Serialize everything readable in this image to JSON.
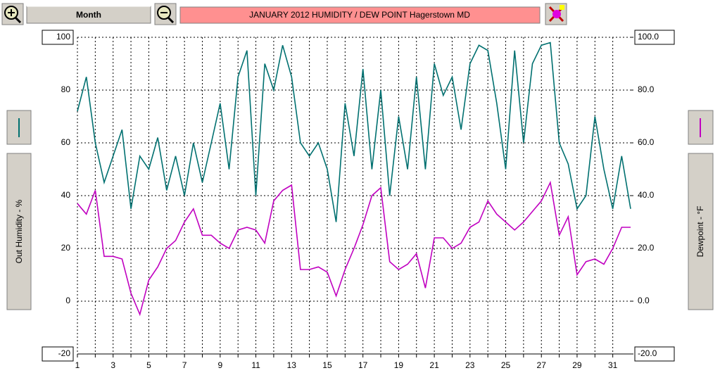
{
  "toolbar": {
    "period": "Month"
  },
  "chart_data": {
    "type": "line",
    "title": "JANUARY 2012  HUMIDITY / DEW POINT  Hagerstown MD",
    "y_label": "Out Humidity - %",
    "y2_label": "Dewpoint - °F",
    "x": [
      1,
      1.5,
      2,
      2.5,
      3,
      3.5,
      4,
      4.5,
      5,
      5.5,
      6,
      6.5,
      7,
      7.5,
      8,
      8.5,
      9,
      9.5,
      10,
      10.5,
      11,
      11.5,
      12,
      12.5,
      13,
      13.5,
      14,
      14.5,
      15,
      15.5,
      16,
      16.5,
      17,
      17.5,
      18,
      18.5,
      19,
      19.5,
      20,
      20.5,
      21,
      21.5,
      22,
      22.5,
      23,
      23.5,
      24,
      24.5,
      25,
      25.5,
      26,
      26.5,
      27,
      27.5,
      28,
      28.5,
      29,
      29.5,
      30,
      30.5,
      31,
      31.5,
      32
    ],
    "series": [
      {
        "name": "Out Humidity",
        "color": "#007070",
        "axis": "y",
        "values": [
          72,
          85,
          60,
          45,
          55,
          65,
          35,
          55,
          50,
          62,
          42,
          55,
          40,
          60,
          45,
          60,
          75,
          50,
          85,
          95,
          40,
          90,
          80,
          97,
          85,
          60,
          55,
          60,
          50,
          30,
          75,
          55,
          88,
          50,
          80,
          40,
          70,
          50,
          85,
          50,
          90,
          78,
          85,
          65,
          90,
          97,
          95,
          75,
          50,
          95,
          60,
          90,
          97,
          98,
          60,
          52,
          35,
          40,
          70,
          50,
          35,
          55,
          35
        ]
      },
      {
        "name": "Dewpoint",
        "color": "#c000c0",
        "axis": "y2",
        "values": [
          37,
          33,
          42,
          17,
          17,
          16,
          3,
          -5,
          8,
          13,
          20,
          23,
          30,
          35,
          25,
          25,
          22,
          20,
          27,
          28,
          27,
          22,
          38,
          42,
          44,
          12,
          12,
          13,
          11,
          2,
          12,
          20,
          29,
          40,
          43,
          15,
          12,
          14,
          18,
          5,
          24,
          24,
          20,
          22,
          28,
          30,
          38,
          33,
          30,
          27,
          30,
          34,
          38,
          45,
          25,
          32,
          10,
          15,
          16,
          14,
          20,
          28,
          28
        ]
      }
    ],
    "xlim": [
      1,
      32
    ],
    "xticks": [
      1,
      3,
      5,
      7,
      9,
      11,
      13,
      15,
      17,
      19,
      21,
      23,
      25,
      27,
      29,
      31
    ],
    "minor_xticks": [
      2,
      4,
      6,
      8,
      10,
      12,
      14,
      16,
      18,
      20,
      22,
      24,
      26,
      28,
      30
    ],
    "ylim": [
      -20,
      100
    ],
    "yticks": [
      -20,
      0,
      20,
      40,
      60,
      80,
      100
    ],
    "y2lim": [
      -20,
      100
    ],
    "y2ticks": [
      {
        "value": -20,
        "label": "-20.0"
      },
      {
        "value": 0,
        "label": "0.0"
      },
      {
        "value": 20,
        "label": "20.0"
      },
      {
        "value": 40,
        "label": "40.0"
      },
      {
        "value": 60,
        "label": "60.0"
      },
      {
        "value": 80,
        "label": "80.0"
      },
      {
        "value": 100,
        "label": "100.0"
      }
    ],
    "grid": true
  }
}
